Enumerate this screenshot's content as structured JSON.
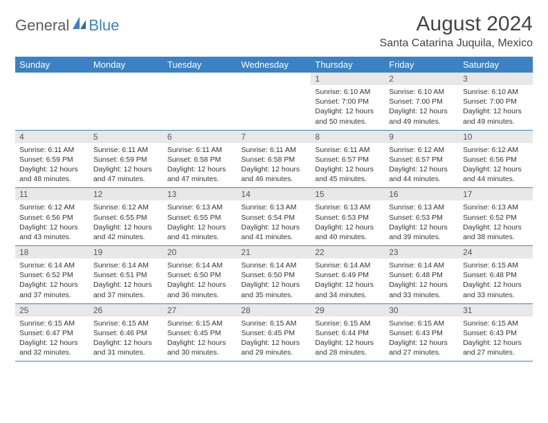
{
  "logo": {
    "part1": "General",
    "part2": "Blue"
  },
  "title": "August 2024",
  "location": "Santa Catarina Juquila, Mexico",
  "headers": [
    "Sunday",
    "Monday",
    "Tuesday",
    "Wednesday",
    "Thursday",
    "Friday",
    "Saturday"
  ],
  "colors": {
    "header_bg": "#3b82c4",
    "daynum_bg": "#e8e8e8",
    "border": "#3b82c4"
  },
  "startOffset": 4,
  "days": [
    {
      "n": 1,
      "sr": "6:10 AM",
      "ss": "7:00 PM",
      "dl": "12 hours and 50 minutes."
    },
    {
      "n": 2,
      "sr": "6:10 AM",
      "ss": "7:00 PM",
      "dl": "12 hours and 49 minutes."
    },
    {
      "n": 3,
      "sr": "6:10 AM",
      "ss": "7:00 PM",
      "dl": "12 hours and 49 minutes."
    },
    {
      "n": 4,
      "sr": "6:11 AM",
      "ss": "6:59 PM",
      "dl": "12 hours and 48 minutes."
    },
    {
      "n": 5,
      "sr": "6:11 AM",
      "ss": "6:59 PM",
      "dl": "12 hours and 47 minutes."
    },
    {
      "n": 6,
      "sr": "6:11 AM",
      "ss": "6:58 PM",
      "dl": "12 hours and 47 minutes."
    },
    {
      "n": 7,
      "sr": "6:11 AM",
      "ss": "6:58 PM",
      "dl": "12 hours and 46 minutes."
    },
    {
      "n": 8,
      "sr": "6:11 AM",
      "ss": "6:57 PM",
      "dl": "12 hours and 45 minutes."
    },
    {
      "n": 9,
      "sr": "6:12 AM",
      "ss": "6:57 PM",
      "dl": "12 hours and 44 minutes."
    },
    {
      "n": 10,
      "sr": "6:12 AM",
      "ss": "6:56 PM",
      "dl": "12 hours and 44 minutes."
    },
    {
      "n": 11,
      "sr": "6:12 AM",
      "ss": "6:56 PM",
      "dl": "12 hours and 43 minutes."
    },
    {
      "n": 12,
      "sr": "6:12 AM",
      "ss": "6:55 PM",
      "dl": "12 hours and 42 minutes."
    },
    {
      "n": 13,
      "sr": "6:13 AM",
      "ss": "6:55 PM",
      "dl": "12 hours and 41 minutes."
    },
    {
      "n": 14,
      "sr": "6:13 AM",
      "ss": "6:54 PM",
      "dl": "12 hours and 41 minutes."
    },
    {
      "n": 15,
      "sr": "6:13 AM",
      "ss": "6:53 PM",
      "dl": "12 hours and 40 minutes."
    },
    {
      "n": 16,
      "sr": "6:13 AM",
      "ss": "6:53 PM",
      "dl": "12 hours and 39 minutes."
    },
    {
      "n": 17,
      "sr": "6:13 AM",
      "ss": "6:52 PM",
      "dl": "12 hours and 38 minutes."
    },
    {
      "n": 18,
      "sr": "6:14 AM",
      "ss": "6:52 PM",
      "dl": "12 hours and 37 minutes."
    },
    {
      "n": 19,
      "sr": "6:14 AM",
      "ss": "6:51 PM",
      "dl": "12 hours and 37 minutes."
    },
    {
      "n": 20,
      "sr": "6:14 AM",
      "ss": "6:50 PM",
      "dl": "12 hours and 36 minutes."
    },
    {
      "n": 21,
      "sr": "6:14 AM",
      "ss": "6:50 PM",
      "dl": "12 hours and 35 minutes."
    },
    {
      "n": 22,
      "sr": "6:14 AM",
      "ss": "6:49 PM",
      "dl": "12 hours and 34 minutes."
    },
    {
      "n": 23,
      "sr": "6:14 AM",
      "ss": "6:48 PM",
      "dl": "12 hours and 33 minutes."
    },
    {
      "n": 24,
      "sr": "6:15 AM",
      "ss": "6:48 PM",
      "dl": "12 hours and 33 minutes."
    },
    {
      "n": 25,
      "sr": "6:15 AM",
      "ss": "6:47 PM",
      "dl": "12 hours and 32 minutes."
    },
    {
      "n": 26,
      "sr": "6:15 AM",
      "ss": "6:46 PM",
      "dl": "12 hours and 31 minutes."
    },
    {
      "n": 27,
      "sr": "6:15 AM",
      "ss": "6:45 PM",
      "dl": "12 hours and 30 minutes."
    },
    {
      "n": 28,
      "sr": "6:15 AM",
      "ss": "6:45 PM",
      "dl": "12 hours and 29 minutes."
    },
    {
      "n": 29,
      "sr": "6:15 AM",
      "ss": "6:44 PM",
      "dl": "12 hours and 28 minutes."
    },
    {
      "n": 30,
      "sr": "6:15 AM",
      "ss": "6:43 PM",
      "dl": "12 hours and 27 minutes."
    },
    {
      "n": 31,
      "sr": "6:15 AM",
      "ss": "6:43 PM",
      "dl": "12 hours and 27 minutes."
    }
  ]
}
